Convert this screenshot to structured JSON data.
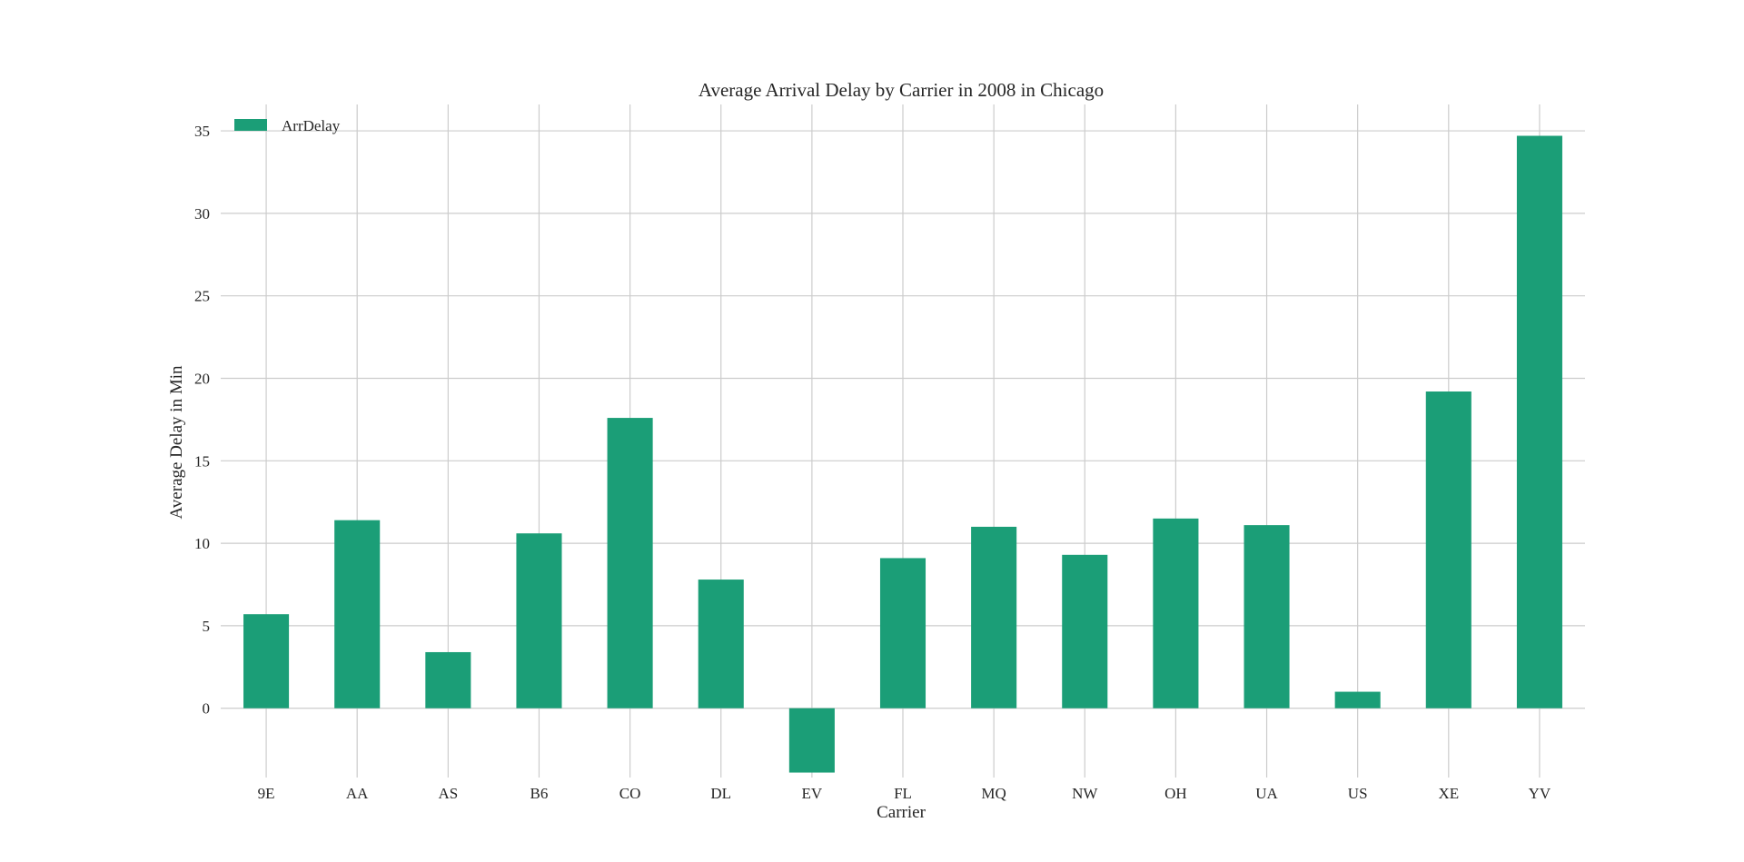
{
  "chart_data": {
    "type": "bar",
    "title": "Average Arrival Delay by Carrier in 2008 in Chicago",
    "xlabel": "Carrier",
    "ylabel": "Average Delay in Min",
    "categories": [
      "9E",
      "AA",
      "AS",
      "B6",
      "CO",
      "DL",
      "EV",
      "FL",
      "MQ",
      "NW",
      "OH",
      "UA",
      "US",
      "XE",
      "YV"
    ],
    "series": [
      {
        "name": "ArrDelay",
        "color": "#1b9e77",
        "values": [
          5.7,
          11.4,
          3.4,
          10.6,
          17.6,
          7.8,
          -3.9,
          9.1,
          11.0,
          9.3,
          11.5,
          11.1,
          1.0,
          19.2,
          34.7
        ]
      }
    ],
    "ylim": [
      -4.2,
      36.6
    ],
    "yticks": [
      0,
      5,
      10,
      15,
      20,
      25,
      30,
      35
    ],
    "grid": true,
    "legend_position": "top-left"
  }
}
